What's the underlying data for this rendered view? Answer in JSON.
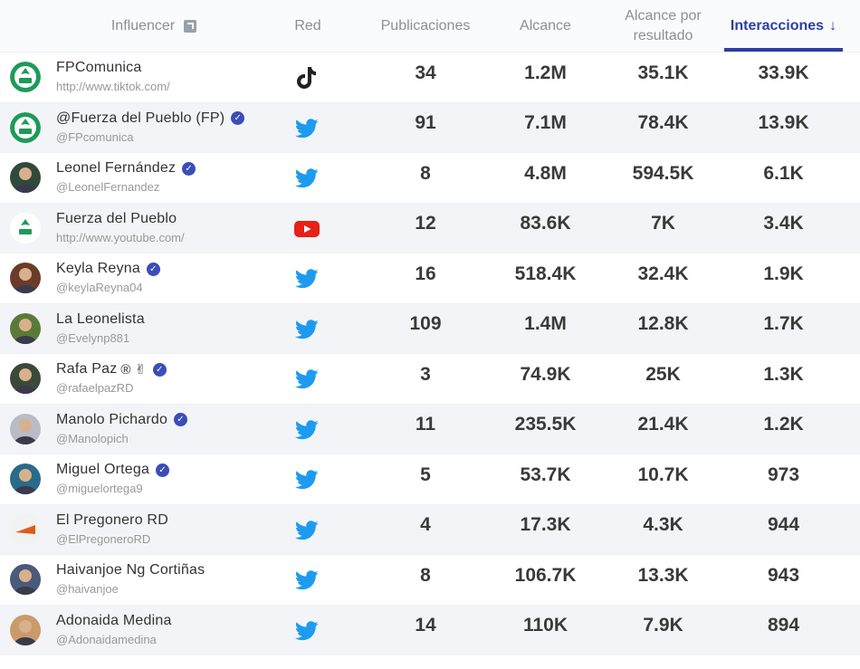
{
  "header": {
    "influencer": "Influencer",
    "red": "Red",
    "publicaciones": "Publicaciones",
    "alcance": "Alcance",
    "alcance_por_resultado_line1": "Alcance por",
    "alcance_por_resultado_line2": "resultado",
    "interacciones": "Interacciones",
    "sort_arrow": "↓",
    "expand_icon": "expand-icon",
    "active_color": "#2c3ea3"
  },
  "rows": [
    {
      "name": "FPComunica",
      "handle": "http://www.tiktok.com/",
      "verified": false,
      "extra": "",
      "network": "tiktok",
      "avatar": "fp-logo",
      "publicaciones": "34",
      "alcance": "1.2M",
      "alcance_por_resultado": "35.1K",
      "interacciones": "33.9K"
    },
    {
      "name": "@Fuerza del Pueblo (FP)",
      "handle": "@FPcomunica",
      "verified": true,
      "extra": "",
      "network": "twitter",
      "avatar": "fp-logo",
      "publicaciones": "91",
      "alcance": "7.1M",
      "alcance_por_resultado": "78.4K",
      "interacciones": "13.9K"
    },
    {
      "name": "Leonel Fernández",
      "handle": "@LeonelFernandez",
      "verified": true,
      "extra": "",
      "network": "twitter",
      "avatar": "photo",
      "publicaciones": "8",
      "alcance": "4.8M",
      "alcance_por_resultado": "594.5K",
      "interacciones": "6.1K"
    },
    {
      "name": "Fuerza del Pueblo",
      "handle": "http://www.youtube.com/",
      "verified": false,
      "extra": "",
      "network": "youtube",
      "avatar": "fp-logo",
      "publicaciones": "12",
      "alcance": "83.6K",
      "alcance_por_resultado": "7K",
      "interacciones": "3.4K"
    },
    {
      "name": "Keyla Reyna",
      "handle": "@keylaReyna04",
      "verified": true,
      "extra": "",
      "network": "twitter",
      "avatar": "photo",
      "publicaciones": "16",
      "alcance": "518.4K",
      "alcance_por_resultado": "32.4K",
      "interacciones": "1.9K"
    },
    {
      "name": "La Leonelista",
      "handle": "@Evelynp881",
      "verified": false,
      "extra": "",
      "network": "twitter",
      "avatar": "photo",
      "publicaciones": "109",
      "alcance": "1.4M",
      "alcance_por_resultado": "12.8K",
      "interacciones": "1.7K"
    },
    {
      "name": "Rafa Paz",
      "handle": "@rafaelpazRD",
      "verified": true,
      "extra": "® ✌",
      "network": "twitter",
      "avatar": "photo",
      "publicaciones": "3",
      "alcance": "74.9K",
      "alcance_por_resultado": "25K",
      "interacciones": "1.3K"
    },
    {
      "name": "Manolo Pichardo",
      "handle": "@Manolopich",
      "verified": true,
      "extra": "",
      "network": "twitter",
      "avatar": "photo",
      "publicaciones": "11",
      "alcance": "235.5K",
      "alcance_por_resultado": "21.4K",
      "interacciones": "1.2K"
    },
    {
      "name": "Miguel Ortega",
      "handle": "@miguelortega9",
      "verified": true,
      "extra": "",
      "network": "twitter",
      "avatar": "photo",
      "publicaciones": "5",
      "alcance": "53.7K",
      "alcance_por_resultado": "10.7K",
      "interacciones": "973"
    },
    {
      "name": "El Pregonero RD",
      "handle": "@ElPregoneroRD",
      "verified": false,
      "extra": "",
      "network": "twitter",
      "avatar": "logo",
      "publicaciones": "4",
      "alcance": "17.3K",
      "alcance_por_resultado": "4.3K",
      "interacciones": "944"
    },
    {
      "name": "Haivanjoe Ng Cortiñas",
      "handle": "@haivanjoe",
      "verified": false,
      "extra": "",
      "network": "twitter",
      "avatar": "photo",
      "publicaciones": "8",
      "alcance": "106.7K",
      "alcance_por_resultado": "13.3K",
      "interacciones": "943"
    },
    {
      "name": "Adonaida Medina",
      "handle": "@Adonaidamedina",
      "verified": false,
      "extra": "",
      "network": "twitter",
      "avatar": "photo",
      "publicaciones": "14",
      "alcance": "110K",
      "alcance_por_resultado": "7.9K",
      "interacciones": "894"
    }
  ],
  "avatar_colors": [
    "#1e9a5a",
    "#1e9a5a",
    "#2f4a3c",
    "#ffffff",
    "#6b3b2a",
    "#5a7a3a",
    "#3a4a3a",
    "#b8bcc4",
    "#2a6a8a",
    "#f2f2f2",
    "#4a5a7a",
    "#c99a6a"
  ],
  "colors": {
    "twitter": "#1d9bf0",
    "youtube": "#e62117",
    "tiktok": "#222222",
    "verified": "#3b4db8"
  }
}
